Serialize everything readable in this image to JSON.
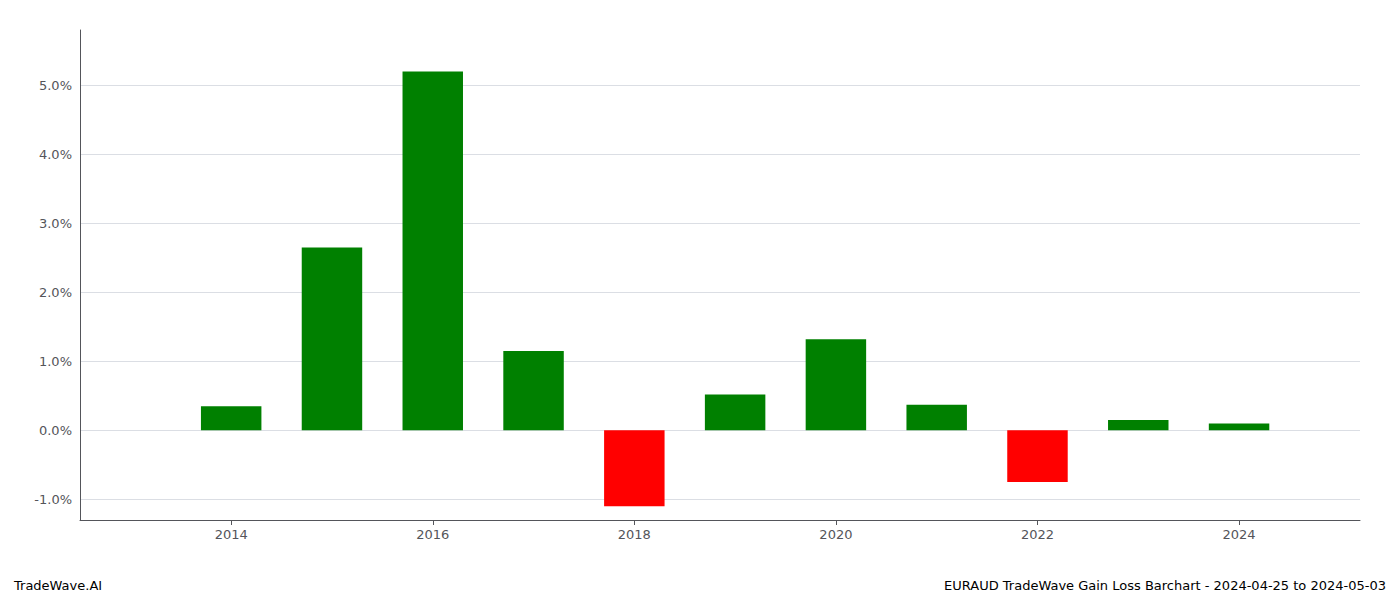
{
  "chart_data": {
    "type": "bar",
    "x": [
      2013,
      2014,
      2015,
      2016,
      2017,
      2018,
      2019,
      2020,
      2021,
      2022,
      2023,
      2024
    ],
    "values": [
      0.0,
      0.0035,
      0.0265,
      0.052,
      0.0115,
      -0.011,
      0.0052,
      0.0132,
      0.0037,
      -0.0075,
      0.0015,
      0.001
    ],
    "colors": [
      "#008000",
      "#008000",
      "#008000",
      "#008000",
      "#008000",
      "#ff0000",
      "#008000",
      "#008000",
      "#008000",
      "#ff0000",
      "#008000",
      "#008000"
    ],
    "xlim": [
      2012.5,
      2025.2
    ],
    "xticks": [
      2014,
      2016,
      2018,
      2020,
      2022,
      2024
    ],
    "ylim": [
      -0.013,
      0.058
    ],
    "yticks": [
      {
        "value": -0.01,
        "label": "-1.0%"
      },
      {
        "value": 0.0,
        "label": "0.0%"
      },
      {
        "value": 0.01,
        "label": "1.0%"
      },
      {
        "value": 0.02,
        "label": "2.0%"
      },
      {
        "value": 0.03,
        "label": "3.0%"
      },
      {
        "value": 0.04,
        "label": "4.0%"
      },
      {
        "value": 0.05,
        "label": "5.0%"
      }
    ],
    "grid": true,
    "annotations": [
      "TradeWave.AI",
      "EURAUD TradeWave Gain Loss Barchart - 2024-04-25 to 2024-05-03"
    ]
  }
}
